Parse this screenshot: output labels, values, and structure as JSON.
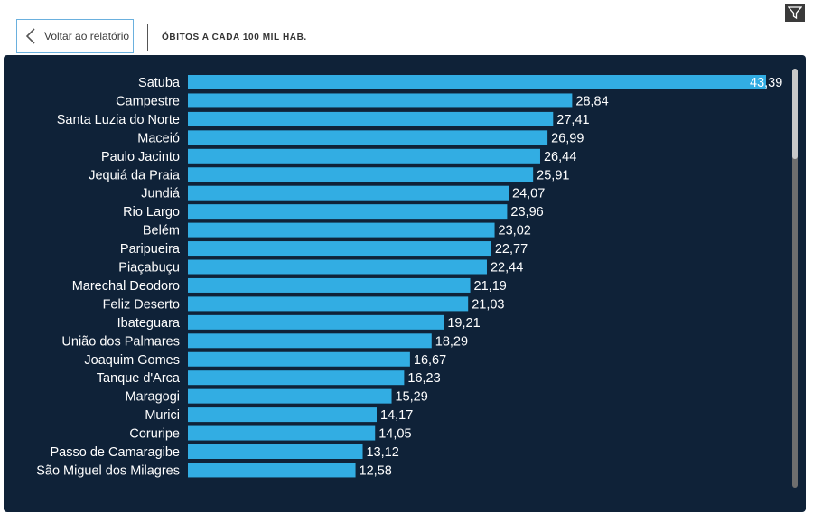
{
  "header": {
    "back_label": "Voltar ao relatório",
    "title": "ÓBITOS A CADA 100 MIL HAB."
  },
  "icons": {
    "filter": "filter-icon",
    "back": "chevron-left-icon"
  },
  "colors": {
    "background": "#0f2238",
    "bar": "#32ade3",
    "text": "#ffffff",
    "scrollbar": "#c8c8c8"
  },
  "chart_data": {
    "type": "bar",
    "orientation": "horizontal",
    "title": "ÓBITOS A CADA 100 MIL HAB.",
    "categories": [
      "Satuba",
      "Campestre",
      "Santa Luzia do Norte",
      "Maceió",
      "Paulo Jacinto",
      "Jequiá da Praia",
      "Jundiá",
      "Rio Largo",
      "Belém",
      "Paripueira",
      "Piaçabuçu",
      "Marechal Deodoro",
      "Feliz Deserto",
      "Ibateguara",
      "União dos Palmares",
      "Joaquim Gomes",
      "Tanque d'Arca",
      "Maragogi",
      "Murici",
      "Coruripe",
      "Passo de Camaragibe",
      "São Miguel dos Milagres"
    ],
    "values": [
      43.39,
      28.84,
      27.41,
      26.99,
      26.44,
      25.91,
      24.07,
      23.96,
      23.02,
      22.77,
      22.44,
      21.19,
      21.03,
      19.21,
      18.29,
      16.67,
      16.23,
      15.29,
      14.17,
      14.05,
      13.12,
      12.58
    ],
    "value_labels": [
      "43,39",
      "28,84",
      "27,41",
      "26,99",
      "26,44",
      "25,91",
      "24,07",
      "23,96",
      "23,02",
      "22,77",
      "22,44",
      "21,19",
      "21,03",
      "19,21",
      "18,29",
      "16,67",
      "16,23",
      "15,29",
      "14,17",
      "14,05",
      "13,12",
      "12,58"
    ],
    "xlim": [
      0,
      43.39
    ],
    "grid": false,
    "legend": "none"
  }
}
